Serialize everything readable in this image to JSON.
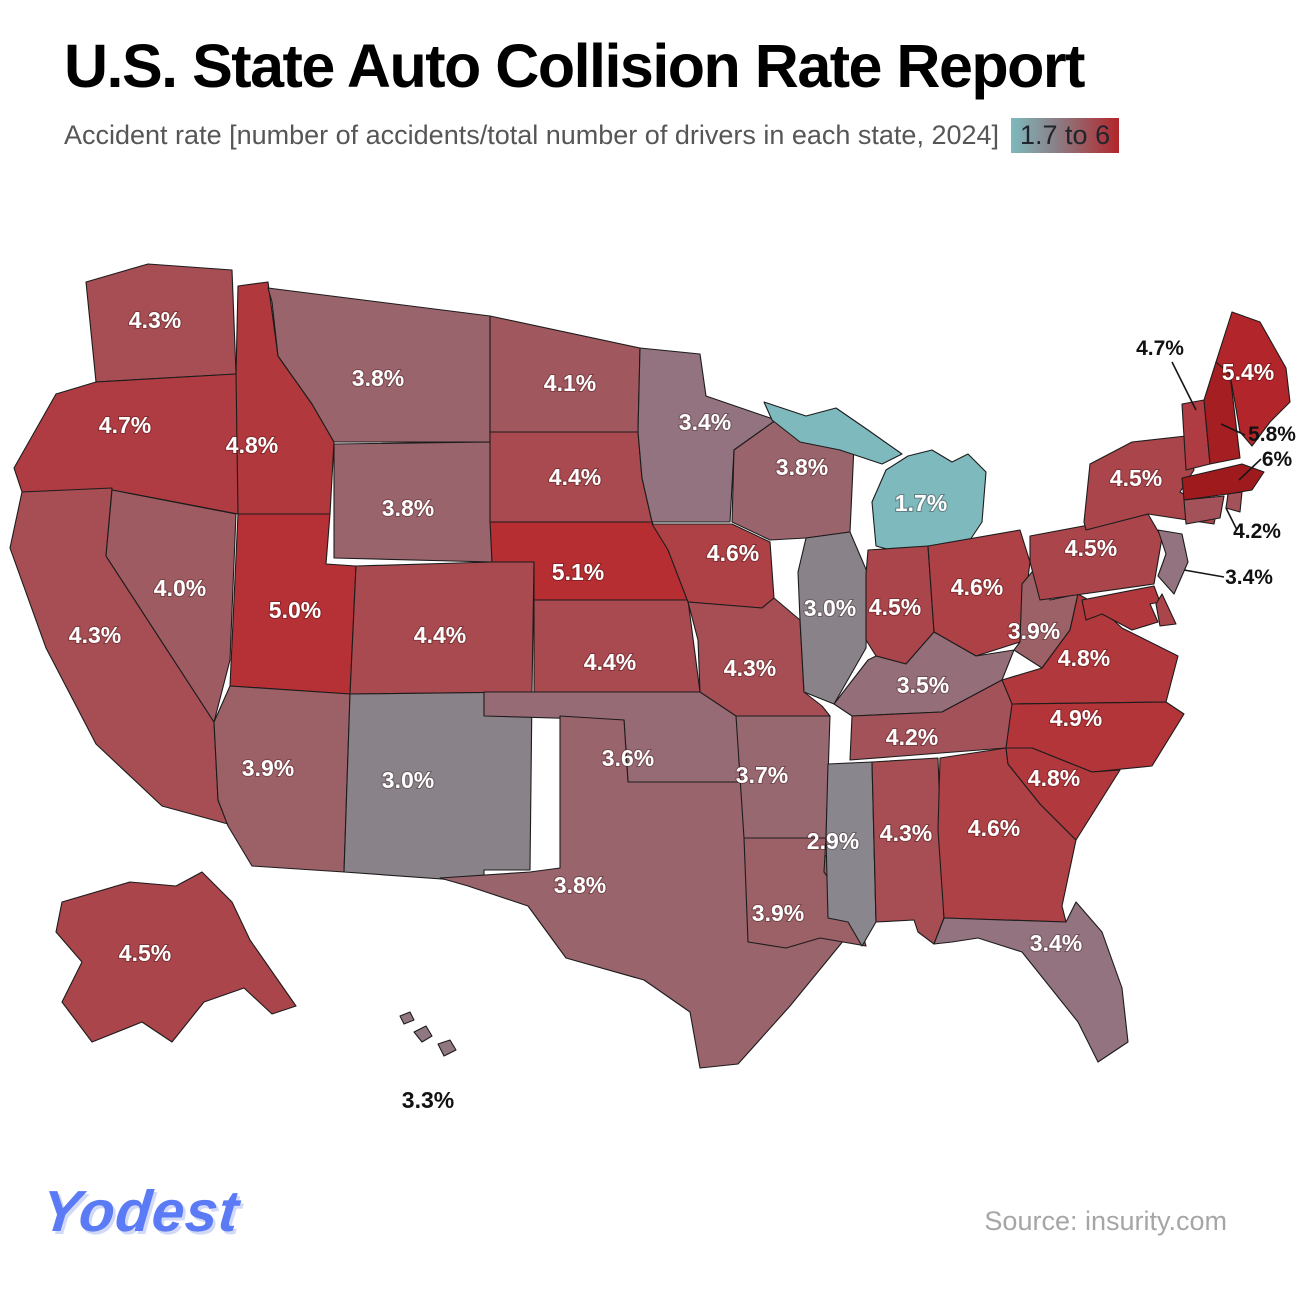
{
  "header": {
    "title": "U.S. State Auto Collision Rate Report",
    "subtitle": "Accident rate [number of accidents/total number of drivers in each state, 2024]",
    "scale_label": "1.7 to 6"
  },
  "footer": {
    "brand": "Yodest",
    "source": "Source: insurity.com"
  },
  "chart_data": {
    "type": "heatmap",
    "subtype": "us-state-choropleth",
    "title": "U.S. State Auto Collision Rate Report",
    "metric": "Accident rate [number of accidents/total number of drivers in each state, 2024]",
    "unit": "%",
    "range": {
      "min": 1.7,
      "max": 6,
      "label": "1.7 to 6"
    },
    "legend_colors": [
      "#7db9bd",
      "#8a8289",
      "#b2262b"
    ],
    "colorscale_stops": [
      [
        1.7,
        "#7db9bd"
      ],
      [
        3.0,
        "#8a8289"
      ],
      [
        3.4,
        "#92737f"
      ],
      [
        3.8,
        "#9a646c"
      ],
      [
        4.3,
        "#a64e54"
      ],
      [
        4.8,
        "#b1383d"
      ],
      [
        5.2,
        "#b8292e"
      ],
      [
        6.0,
        "#9e1a1d"
      ]
    ],
    "states": [
      {
        "abbr": "AK",
        "name": "Alaska",
        "value": 4.5,
        "label": "4.5%"
      },
      {
        "abbr": "HI",
        "name": "Hawaii",
        "value": 3.3,
        "label": "3.3%"
      },
      {
        "abbr": "WA",
        "name": "Washington",
        "value": 4.3,
        "label": "4.3%"
      },
      {
        "abbr": "OR",
        "name": "Oregon",
        "value": 4.7,
        "label": "4.7%"
      },
      {
        "abbr": "CA",
        "name": "California",
        "value": 4.3,
        "label": "4.3%"
      },
      {
        "abbr": "NV",
        "name": "Nevada",
        "value": 4.0,
        "label": "4.0%"
      },
      {
        "abbr": "ID",
        "name": "Idaho",
        "value": 4.8,
        "label": "4.8%"
      },
      {
        "abbr": "MT",
        "name": "Montana",
        "value": 3.8,
        "label": "3.8%"
      },
      {
        "abbr": "WY",
        "name": "Wyoming",
        "value": 3.8,
        "label": "3.8%"
      },
      {
        "abbr": "UT",
        "name": "Utah",
        "value": 5.0,
        "label": "5.0%"
      },
      {
        "abbr": "CO",
        "name": "Colorado",
        "value": 4.4,
        "label": "4.4%"
      },
      {
        "abbr": "AZ",
        "name": "Arizona",
        "value": 3.9,
        "label": "3.9%"
      },
      {
        "abbr": "NM",
        "name": "New Mexico",
        "value": 3.0,
        "label": "3.0%"
      },
      {
        "abbr": "ND",
        "name": "North Dakota",
        "value": 4.1,
        "label": "4.1%"
      },
      {
        "abbr": "SD",
        "name": "South Dakota",
        "value": 4.4,
        "label": "4.4%"
      },
      {
        "abbr": "NE",
        "name": "Nebraska",
        "value": 5.1,
        "label": "5.1%"
      },
      {
        "abbr": "KS",
        "name": "Kansas",
        "value": 4.4,
        "label": "4.4%"
      },
      {
        "abbr": "OK",
        "name": "Oklahoma",
        "value": 3.6,
        "label": "3.6%"
      },
      {
        "abbr": "TX",
        "name": "Texas",
        "value": 3.8,
        "label": "3.8%"
      },
      {
        "abbr": "MN",
        "name": "Minnesota",
        "value": 3.4,
        "label": "3.4%"
      },
      {
        "abbr": "IA",
        "name": "Iowa",
        "value": 4.6,
        "label": "4.6%"
      },
      {
        "abbr": "MO",
        "name": "Missouri",
        "value": 4.3,
        "label": "4.3%"
      },
      {
        "abbr": "AR",
        "name": "Arkansas",
        "value": 3.7,
        "label": "3.7%"
      },
      {
        "abbr": "LA",
        "name": "Louisiana",
        "value": 3.9,
        "label": "3.9%"
      },
      {
        "abbr": "WI",
        "name": "Wisconsin",
        "value": 3.8,
        "label": "3.8%"
      },
      {
        "abbr": "IL",
        "name": "Illinois",
        "value": 3.0,
        "label": "3.0%"
      },
      {
        "abbr": "MI",
        "name": "Michigan",
        "value": 1.7,
        "label": "1.7%"
      },
      {
        "abbr": "IN",
        "name": "Indiana",
        "value": 4.5,
        "label": "4.5%"
      },
      {
        "abbr": "OH",
        "name": "Ohio",
        "value": 4.6,
        "label": "4.6%"
      },
      {
        "abbr": "KY",
        "name": "Kentucky",
        "value": 3.5,
        "label": "3.5%"
      },
      {
        "abbr": "TN",
        "name": "Tennessee",
        "value": 4.2,
        "label": "4.2%"
      },
      {
        "abbr": "MS",
        "name": "Mississippi",
        "value": 2.9,
        "label": "2.9%"
      },
      {
        "abbr": "AL",
        "name": "Alabama",
        "value": 4.3,
        "label": "4.3%"
      },
      {
        "abbr": "GA",
        "name": "Georgia",
        "value": 4.6,
        "label": "4.6%"
      },
      {
        "abbr": "FL",
        "name": "Florida",
        "value": 3.4,
        "label": "3.4%"
      },
      {
        "abbr": "WV",
        "name": "West Virginia",
        "value": 3.9,
        "label": "3.9%"
      },
      {
        "abbr": "VA",
        "name": "Virginia",
        "value": 4.8,
        "label": "4.8%"
      },
      {
        "abbr": "NC",
        "name": "North Carolina",
        "value": 4.9,
        "label": "4.9%"
      },
      {
        "abbr": "SC",
        "name": "South Carolina",
        "value": 4.8,
        "label": "4.8%"
      },
      {
        "abbr": "PA",
        "name": "Pennsylvania",
        "value": 4.5,
        "label": "4.5%"
      },
      {
        "abbr": "NY",
        "name": "New York",
        "value": 4.5,
        "label": "4.5%"
      },
      {
        "abbr": "MD",
        "name": "Maryland",
        "value": null,
        "label": null,
        "color": "#b1383d"
      },
      {
        "abbr": "DE",
        "name": "Delaware",
        "value": null,
        "label": null,
        "color": "#aa454b"
      },
      {
        "abbr": "NJ",
        "name": "New Jersey",
        "value": 3.4,
        "label": "3.4%",
        "annotated": true
      },
      {
        "abbr": "MA",
        "name": "Massachusetts",
        "value": 6,
        "label": "6%",
        "annotated": true
      },
      {
        "abbr": "RI",
        "name": "Rhode Island",
        "value": 4.2,
        "label": "4.2%",
        "annotated": true
      },
      {
        "abbr": "CT",
        "name": "Connecticut",
        "value": 4.2,
        "label": "4.2%",
        "annotated": true
      },
      {
        "abbr": "VT",
        "name": "Vermont",
        "value": 4.7,
        "label": "4.7%",
        "annotated": true
      },
      {
        "abbr": "NH",
        "name": "New Hampshire",
        "value": 5.8,
        "label": "5.8%",
        "annotated": true
      },
      {
        "abbr": "ME",
        "name": "Maine",
        "value": 5.4,
        "label": "5.4%"
      }
    ],
    "annotations": [
      {
        "key": "VT",
        "text": "4.7%",
        "target": "Vermont"
      },
      {
        "key": "NH",
        "text": "5.8%",
        "target": "New Hampshire"
      },
      {
        "key": "MA",
        "text": "6%",
        "target": "Massachusetts"
      },
      {
        "key": "RI",
        "text": "4.2%",
        "target": "Rhode Island / Connecticut"
      },
      {
        "key": "NJ",
        "text": "3.4%",
        "target": "New Jersey"
      }
    ]
  }
}
